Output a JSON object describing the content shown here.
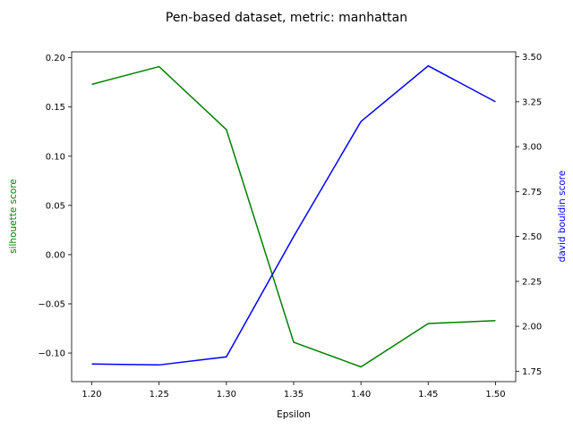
{
  "chart_data": {
    "type": "line",
    "title": "Pen-based dataset, metric: manhattan",
    "xlabel": "Epsilon",
    "x": [
      1.2,
      1.25,
      1.3,
      1.35,
      1.4,
      1.45,
      1.5
    ],
    "xlim": [
      1.185,
      1.515
    ],
    "xticks": [
      "1.20",
      "1.25",
      "1.30",
      "1.35",
      "1.40",
      "1.45",
      "1.50"
    ],
    "y_left": {
      "label": "silhouette score",
      "color": "#008000",
      "lim": [
        -0.129,
        0.206
      ],
      "ticks": [
        "−0.10",
        "−0.05",
        "0.00",
        "0.05",
        "0.10",
        "0.15",
        "0.20"
      ],
      "values": [
        0.173,
        0.191,
        0.127,
        -0.089,
        -0.114,
        -0.07,
        -0.067
      ]
    },
    "y_right": {
      "label": "david bouldin score",
      "color": "#0000ff",
      "lim": [
        1.692,
        3.528
      ],
      "ticks": [
        "1.75",
        "2.00",
        "2.25",
        "2.50",
        "2.75",
        "3.00",
        "3.25",
        "3.50"
      ],
      "values": [
        1.79,
        1.785,
        1.83,
        2.5,
        3.14,
        3.45,
        3.25
      ]
    },
    "grid": false,
    "legend": "none"
  }
}
